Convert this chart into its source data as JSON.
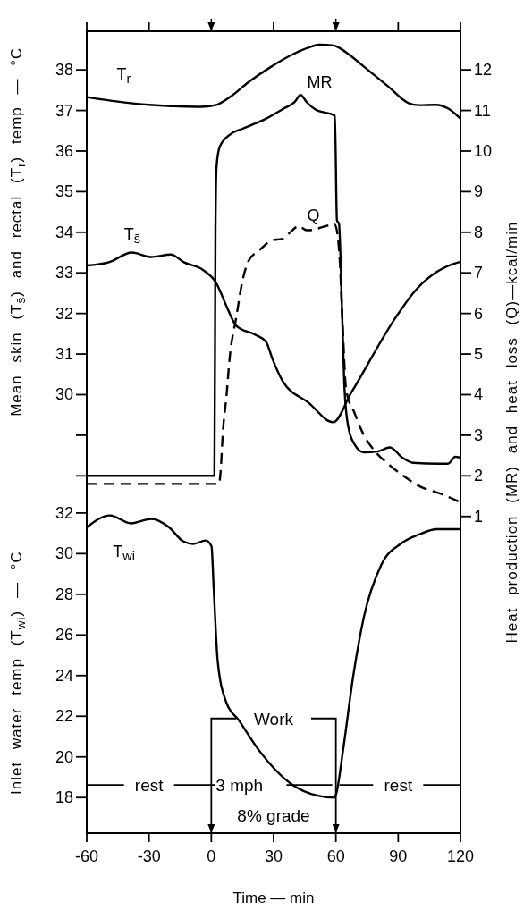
{
  "chart_data": {
    "type": "line",
    "xlabel": "Time — min",
    "ylabel": "Mean skin (T$_{s̄}$) and rectal (T$_{r}$) temp — °C",
    "y2label": "Heat production (MR) and heat loss (Q)—kcal/min",
    "y3label": "Inlet water temp (T$_{wi}$) — °C",
    "xlim": [
      -60,
      120
    ],
    "xticks": [
      -60,
      -30,
      0,
      30,
      60,
      90,
      120
    ],
    "ylim": [
      19.2,
      38.95
    ],
    "yticks": [
      {
        "value": 28,
        "label": null
      },
      {
        "value": 29,
        "label": null
      },
      30,
      31,
      32,
      33,
      34,
      35,
      36,
      37,
      38
    ],
    "y2lim": [
      -6.8,
      12.95
    ],
    "y2ticks": [
      1,
      2,
      3,
      4,
      5,
      6,
      7,
      8,
      9,
      10,
      11,
      12
    ],
    "y3lim": [
      16.25,
      55.7
    ],
    "y3ticks": [
      18,
      20,
      22,
      24,
      26,
      28,
      30,
      32
    ],
    "ref_lines": [
      {
        "axis": "x",
        "value": 0
      },
      {
        "axis": "x",
        "value": 60
      }
    ],
    "annotations": [
      "rest",
      "3 mph",
      "8% grade",
      "rest",
      "Work"
    ],
    "series": [
      {
        "name": "T$_{r}$",
        "color": "#000000",
        "line_style": "solid",
        "x": [
          -60,
          -45,
          -30,
          -15,
          -5,
          2,
          9,
          18,
          28,
          38,
          47,
          52,
          59,
          62,
          67,
          73,
          85,
          95,
          100,
          108,
          114,
          120
        ],
        "values": [
          37.33,
          37.22,
          37.14,
          37.1,
          37.09,
          37.13,
          37.33,
          37.7,
          38.05,
          38.35,
          38.55,
          38.62,
          38.6,
          38.53,
          38.35,
          38.1,
          37.6,
          37.18,
          37.13,
          37.14,
          37.05,
          36.8
        ]
      },
      {
        "name": "T$_{s̄}$",
        "color": "#000000",
        "line_style": "solid",
        "x": [
          -60,
          -49.3,
          -38.3,
          -28.9,
          -19.5,
          -13.2,
          -3.7,
          2.5,
          7.3,
          12,
          21.4,
          26.4,
          29.3,
          34.3,
          46.9,
          58.7,
          67.3,
          89.3,
          97.2,
          119.2,
          120
        ],
        "values": [
          33.18,
          33.26,
          33.5,
          33.39,
          33.45,
          33.26,
          33.06,
          32.74,
          32.18,
          31.7,
          31.47,
          31.3,
          30.9,
          30.34,
          29.8,
          29.32,
          30.04,
          31.94,
          32.5,
          33.26,
          33.27
        ]
      },
      {
        "name": "MR",
        "color": "#000000",
        "line_style": "solid",
        "axis": "y2",
        "x": [
          -60,
          1.5,
          2,
          2.5,
          4,
          8.8,
          15,
          26.4,
          35,
          40,
          43,
          46,
          50,
          59.5,
          60.5,
          61.5,
          63,
          64.2,
          66,
          68.9,
          73.5,
          80,
          86,
          92,
          97.2,
          109.5,
          114,
          117.5,
          120
        ],
        "values": [
          2,
          2,
          8,
          9.6,
          10.1,
          10.4,
          10.55,
          10.8,
          11.05,
          11.2,
          11.38,
          11.2,
          11.03,
          10.87,
          8.3,
          8.2,
          6,
          4.1,
          3.2,
          2.78,
          2.58,
          2.6,
          2.7,
          2.45,
          2.32,
          2.3,
          2.3,
          2.47,
          2.45
        ]
      },
      {
        "name": "Q",
        "color": "#000000",
        "line_style": "dashed",
        "axis": "y2",
        "x": [
          -60,
          3.8,
          4.3,
          5.7,
          7.3,
          8.8,
          12,
          15,
          18,
          23,
          29.3,
          34.4,
          38,
          42,
          46,
          50,
          55,
          59.5,
          61.7,
          63,
          65,
          68.9,
          73,
          78.4,
          85,
          92.5,
          100,
          111.4,
          120
        ],
        "values": [
          1.8,
          1.8,
          2,
          3.17,
          3.96,
          4.88,
          5.9,
          6.8,
          7.3,
          7.55,
          7.8,
          7.84,
          8,
          8.15,
          8.05,
          8.07,
          8.15,
          8.19,
          7.45,
          6,
          4.1,
          3.56,
          3.05,
          2.63,
          2.3,
          2,
          1.75,
          1.54,
          1.35
        ]
      },
      {
        "name": "T$_{wi}$",
        "color": "#000000",
        "line_style": "solid",
        "axis": "y3",
        "x": [
          -60,
          -48.8,
          -38.7,
          -28.7,
          -20.3,
          -13.6,
          -8.6,
          -2.7,
          0.1,
          1.1,
          3.1,
          7.3,
          13.2,
          23.2,
          38.3,
          51.7,
          59.2,
          60.1,
          63.4,
          68.4,
          73.5,
          81.8,
          91.9,
          100.2,
          108.6,
          118.6,
          120
        ],
        "values": [
          31.29,
          31.88,
          31.49,
          31.71,
          31.29,
          30.61,
          30.48,
          30.65,
          30.36,
          28.41,
          24.69,
          22.66,
          21.81,
          20.29,
          18.68,
          18.08,
          18,
          18.17,
          20.29,
          24.01,
          26.89,
          29.43,
          30.53,
          30.95,
          31.2,
          31.2,
          31.2
        ]
      }
    ]
  }
}
